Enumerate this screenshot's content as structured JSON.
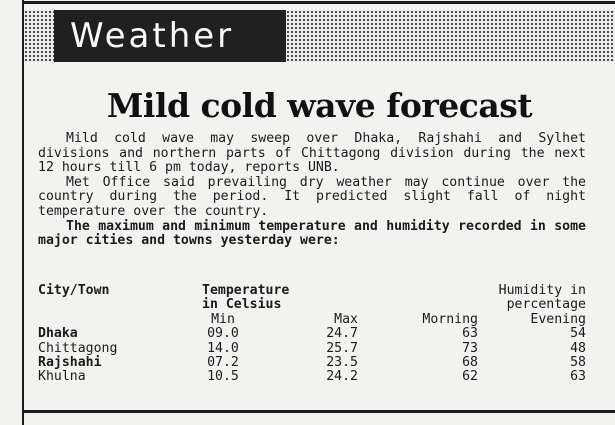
{
  "section_label": "Weather",
  "headline": "Mild cold wave forecast",
  "paragraphs": [
    "Mild cold wave may sweep over Dhaka, Rajshahi and Sylhet divisions and northern parts of Chittagong division during the next 12 hours till 6 pm today, reports UNB.",
    "Met Office said prevailing dry weather may continue over the country during the period. It predicted slight fall of night temperature over the country.",
    "The maximum and minimum temperature and humidity recorded in some major cities and towns yesterday were:"
  ],
  "table": {
    "header_city": "City/Town",
    "header_temp_1": "Temperature",
    "header_temp_2": "in Celsius",
    "header_hum_1": "Humidity in",
    "header_hum_2": "percentage",
    "col_min": "Min",
    "col_max": "Max",
    "col_morning": "Morning",
    "col_evening": "Evening",
    "rows": [
      {
        "city": "Dhaka",
        "min": "09.0",
        "max": "24.7",
        "morning": "63",
        "evening": "54"
      },
      {
        "city": "Chittagong",
        "min": "14.0",
        "max": "25.7",
        "morning": "73",
        "evening": "48"
      },
      {
        "city": "Rajshahi",
        "min": "07.2",
        "max": "23.5",
        "morning": "68",
        "evening": "58"
      },
      {
        "city": "Khulna",
        "min": "10.5",
        "max": "24.2",
        "morning": "62",
        "evening": "63"
      }
    ]
  }
}
